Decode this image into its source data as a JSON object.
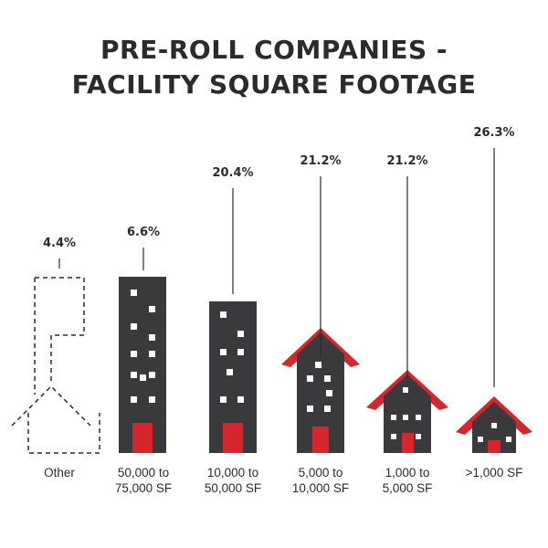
{
  "title_lines": [
    "PRE-ROLL COMPANIES -",
    "FACILITY SQUARE FOOTAGE"
  ],
  "chart_data": {
    "type": "bar",
    "categories": [
      "Other",
      "50,000 to 75,000 SF",
      "10,000 to 50,000 SF",
      "5,000 to 10,000 SF",
      "1,000 to 5,000 SF",
      ">1,000 SF"
    ],
    "category_label_lines": [
      [
        "Other"
      ],
      [
        "50,000 to",
        "75,000 SF"
      ],
      [
        "10,000 to",
        "50,000 SF"
      ],
      [
        "5,000 to",
        "10,000 SF"
      ],
      [
        "1,000 to",
        "5,000 SF"
      ],
      [
        ">1,000 SF"
      ]
    ],
    "values": [
      4.4,
      6.6,
      20.4,
      21.2,
      21.2,
      26.3
    ],
    "value_labels": [
      "4.4%",
      "6.6%",
      "20.4%",
      "21.2%",
      "21.2%",
      "26.3%"
    ],
    "title": "PRE-ROLL COMPANIES - FACILITY SQUARE FOOTAGE",
    "xlabel": "",
    "ylabel": "",
    "grid": false
  },
  "colors": {
    "dark": "#3a3a3c",
    "accent": "#d7262b",
    "window": "#ffffff",
    "text": "#2b2b2b"
  },
  "icons": [
    "dashed-building-outline-icon",
    "tall-building-icon",
    "office-building-icon",
    "narrow-house-icon",
    "house-icon",
    "small-house-icon"
  ]
}
